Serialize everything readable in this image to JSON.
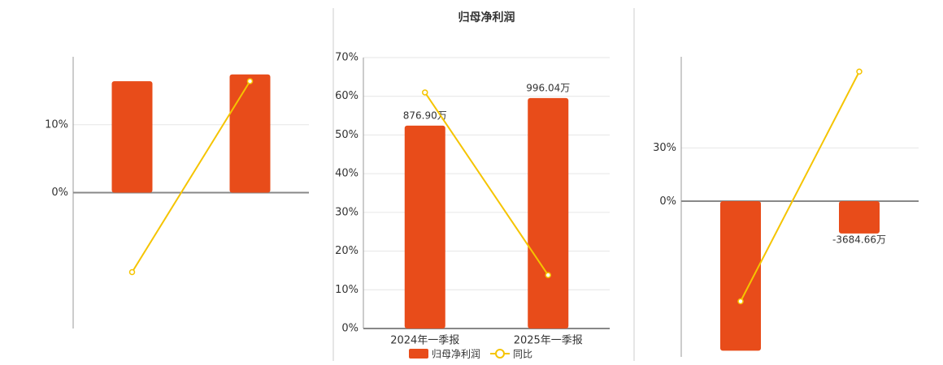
{
  "chart_data": [
    {
      "type": "bar_line",
      "categories": [
        null,
        null
      ],
      "ylim": [
        -20,
        20
      ],
      "yticks": [
        {
          "value": 0,
          "label": "0%"
        },
        {
          "value": 10,
          "label": "10%"
        }
      ],
      "grid": true,
      "series": [
        {
          "type": "bar",
          "color": "#e84c1a",
          "values": [
            16.4,
            17.4
          ]
        },
        {
          "type": "line",
          "color": "#f5c400",
          "values": [
            -11.7,
            16.4
          ]
        }
      ]
    },
    {
      "type": "bar_line",
      "title": "归母净利润",
      "categories": [
        "2024年一季报",
        "2025年一季报"
      ],
      "ylim": [
        0,
        70
      ],
      "yticks": [
        {
          "value": 0,
          "label": "0%"
        },
        {
          "value": 10,
          "label": "10%"
        },
        {
          "value": 20,
          "label": "20%"
        },
        {
          "value": 30,
          "label": "30%"
        },
        {
          "value": 40,
          "label": "40%"
        },
        {
          "value": 50,
          "label": "50%"
        },
        {
          "value": 60,
          "label": "60%"
        },
        {
          "value": 70,
          "label": "70%"
        }
      ],
      "y2lim": [
        0,
        1171
      ],
      "grid": true,
      "legend": "bottom",
      "series": [
        {
          "type": "bar",
          "name": "归母净利润",
          "color": "#e84c1a",
          "axis": "y2",
          "values": [
            876.9,
            996.04
          ],
          "value_labels": [
            "876.90万",
            "996.04万"
          ]
        },
        {
          "type": "line",
          "name": "同比",
          "color": "#f5c400",
          "values": [
            61.0,
            13.8
          ]
        }
      ]
    },
    {
      "type": "bar_line",
      "categories": [
        null,
        null
      ],
      "ylim": [
        -87,
        81
      ],
      "yticks": [
        {
          "value": 0,
          "label": "0%"
        },
        {
          "value": 30,
          "label": "30%"
        }
      ],
      "y2lim": [
        -17700,
        16400
      ],
      "grid": true,
      "series": [
        {
          "type": "bar",
          "color": "#e84c1a",
          "axis": "y2",
          "values": [
            -17000,
            -3684.66
          ],
          "value_labels": [
            null,
            "-3684.66万"
          ]
        },
        {
          "type": "line",
          "color": "#f5c400",
          "values": [
            -55.9,
            72.7
          ]
        }
      ]
    }
  ]
}
